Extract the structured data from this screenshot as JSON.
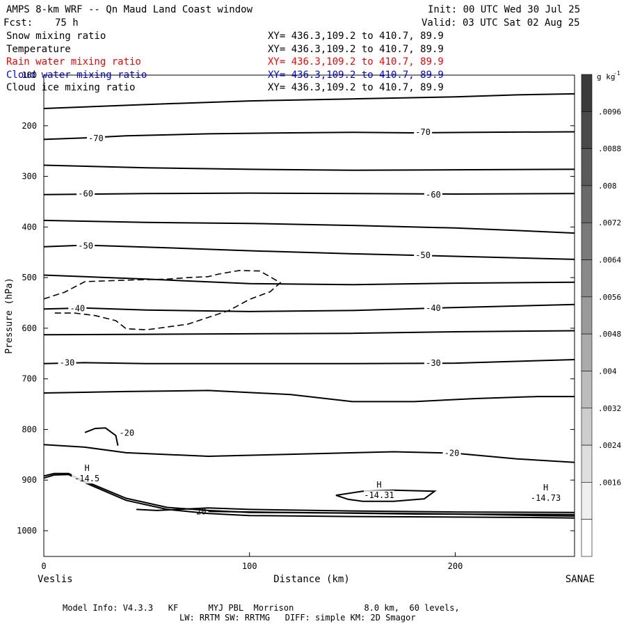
{
  "header": {
    "title": "AMPS 8-km WRF -- Qn Maud Land Coast window",
    "init": "Init: 00 UTC Wed 30 Jul 25",
    "fcst_label": "Fcst:",
    "fcst_value": "75 h",
    "valid": "Valid: 03 UTC Sat 02 Aug 25"
  },
  "fields": [
    {
      "name": "Snow mixing ratio",
      "xy": "XY= 436.3,109.2 to 410.7, 89.9",
      "color": "#000000"
    },
    {
      "name": "Temperature",
      "xy": "XY= 436.3,109.2 to 410.7, 89.9",
      "color": "#000000"
    },
    {
      "name": "Rain water mixing ratio",
      "xy": "XY= 436.3,109.2 to 410.7, 89.9",
      "color": "#ff0000"
    },
    {
      "name": "Cloud water mixing ratio",
      "xy": "XY= 436.3,109.2 to 410.7, 89.9",
      "color": "#0000ff"
    },
    {
      "name": "Cloud ice mixing ratio",
      "xy": "XY= 436.3,109.2 to 410.7, 89.9",
      "color": "#000000"
    }
  ],
  "footer": {
    "line1": "Model Info: V4.3.3   KF      MYJ PBL  Morrison              8.0 km,  60 levels,",
    "line2": "LW: RRTM SW: RRTMG   DIFF: simple KM: 2D Smagor"
  },
  "chart_data": {
    "type": "contour",
    "xlabel": "Distance (km)",
    "ylabel": "Pressure (hPa)",
    "x_start_label": "Veslis",
    "x_end_label": "SANAE",
    "xlim": [
      0,
      258
    ],
    "ylim": [
      1050,
      100
    ],
    "x_ticks": [
      0,
      100,
      200
    ],
    "y_ticks": [
      100,
      200,
      300,
      400,
      500,
      600,
      700,
      800,
      900,
      1000
    ],
    "colorbar": {
      "unit": "g kg",
      "unit_exp": "-1",
      "levels": [
        ".0096",
        ".0088",
        ".008",
        ".0072",
        ".0064",
        ".0056",
        ".0048",
        ".004",
        ".0032",
        ".0024",
        ".0016"
      ],
      "colors": [
        "#3a3a3a",
        "#4a4a4a",
        "#5a5a5a",
        "#6a6a6a",
        "#7a7a7a",
        "#8a8a8a",
        "#9a9a9a",
        "#ababab",
        "#bcbcbc",
        "#cdcdcd",
        "#dedede",
        "#efefef",
        "#ffffff"
      ]
    },
    "isotherms": [
      {
        "points": [
          [
            0,
            166
          ],
          [
            50,
            158
          ],
          [
            100,
            151
          ],
          [
            150,
            147
          ],
          [
            200,
            143
          ],
          [
            230,
            139
          ],
          [
            258,
            137
          ]
        ]
      },
      {
        "points": [
          [
            0,
            227
          ],
          [
            20,
            224
          ],
          [
            40,
            220
          ],
          [
            80,
            216
          ],
          [
            120,
            214
          ],
          [
            150,
            213
          ],
          [
            180,
            214
          ],
          [
            210,
            213
          ],
          [
            258,
            212
          ]
        ],
        "label": "-70",
        "label_positions": [
          [
            25,
            225
          ],
          [
            184,
            213
          ]
        ]
      },
      {
        "points": [
          [
            0,
            278
          ],
          [
            50,
            283
          ],
          [
            100,
            286
          ],
          [
            150,
            288
          ],
          [
            200,
            287
          ],
          [
            258,
            286
          ]
        ]
      },
      {
        "points": [
          [
            0,
            336
          ],
          [
            50,
            334
          ],
          [
            100,
            333
          ],
          [
            150,
            334
          ],
          [
            200,
            335
          ],
          [
            258,
            334
          ]
        ],
        "label": "-60",
        "label_positions": [
          [
            20,
            334
          ],
          [
            189,
            336
          ]
        ]
      },
      {
        "points": [
          [
            0,
            387
          ],
          [
            50,
            391
          ],
          [
            100,
            393
          ],
          [
            150,
            397
          ],
          [
            200,
            402
          ],
          [
            230,
            407
          ],
          [
            258,
            412
          ]
        ]
      },
      {
        "points": [
          [
            0,
            439
          ],
          [
            20,
            436
          ],
          [
            60,
            441
          ],
          [
            100,
            447
          ],
          [
            150,
            453
          ],
          [
            200,
            458
          ],
          [
            258,
            464
          ]
        ],
        "label": "-50",
        "label_positions": [
          [
            20,
            437
          ],
          [
            184,
            456
          ]
        ]
      },
      {
        "points": [
          [
            0,
            495
          ],
          [
            50,
            503
          ],
          [
            100,
            512
          ],
          [
            150,
            514
          ],
          [
            200,
            511
          ],
          [
            258,
            509
          ]
        ]
      },
      {
        "points": [
          [
            0,
            562
          ],
          [
            20,
            560
          ],
          [
            50,
            564
          ],
          [
            100,
            567
          ],
          [
            150,
            565
          ],
          [
            200,
            559
          ],
          [
            258,
            553
          ]
        ],
        "label": "-40",
        "label_positions": [
          [
            16,
            561
          ],
          [
            189,
            560
          ]
        ]
      },
      {
        "points": [
          [
            0,
            613
          ],
          [
            50,
            612
          ],
          [
            100,
            611
          ],
          [
            150,
            610
          ],
          [
            200,
            607
          ],
          [
            258,
            605
          ]
        ]
      },
      {
        "points": [
          [
            0,
            670
          ],
          [
            20,
            668
          ],
          [
            50,
            670
          ],
          [
            100,
            670
          ],
          [
            150,
            670
          ],
          [
            200,
            669
          ],
          [
            258,
            662
          ]
        ],
        "label": "-30",
        "label_positions": [
          [
            11,
            668
          ],
          [
            189,
            669
          ]
        ]
      },
      {
        "points": [
          [
            0,
            728
          ],
          [
            40,
            725
          ],
          [
            80,
            723
          ],
          [
            120,
            731
          ],
          [
            150,
            745
          ],
          [
            180,
            745
          ],
          [
            210,
            739
          ],
          [
            240,
            735
          ],
          [
            258,
            735
          ]
        ]
      },
      {
        "points": [
          [
            0,
            830
          ],
          [
            20,
            835
          ],
          [
            40,
            846
          ],
          [
            80,
            853
          ],
          [
            120,
            849
          ],
          [
            170,
            844
          ],
          [
            200,
            847
          ],
          [
            230,
            858
          ],
          [
            258,
            865
          ]
        ],
        "label": "-20",
        "label_positions": [
          [
            40,
            807
          ],
          [
            198,
            847
          ],
          [
            75,
            962
          ]
        ]
      },
      {
        "points": [
          [
            20,
            806
          ],
          [
            25,
            798
          ],
          [
            30,
            797
          ],
          [
            35,
            812
          ],
          [
            36,
            832
          ]
        ]
      }
    ],
    "cloud_ice_contour": {
      "style": "dashed",
      "points": [
        [
          0,
          542
        ],
        [
          10,
          529
        ],
        [
          20,
          508
        ],
        [
          40,
          505
        ],
        [
          60,
          503
        ],
        [
          70,
          500
        ],
        [
          80,
          498
        ],
        [
          85,
          493
        ],
        [
          95,
          486
        ],
        [
          105,
          487
        ],
        [
          115,
          510
        ],
        [
          110,
          528
        ],
        [
          100,
          543
        ],
        [
          90,
          565
        ],
        [
          70,
          592
        ],
        [
          50,
          603
        ],
        [
          40,
          601
        ],
        [
          35,
          585
        ],
        [
          25,
          575
        ],
        [
          15,
          570
        ],
        [
          5,
          570
        ]
      ]
    },
    "highs": [
      {
        "label": "H",
        "value": "-14.5",
        "x": 21,
        "p": 882
      },
      {
        "label": "H",
        "value": "-14.31",
        "x": 163,
        "p": 915
      },
      {
        "label": "H",
        "value": "-14.73",
        "x": 244,
        "p": 920
      }
    ],
    "closed_contour_h2": [
      [
        142,
        930
      ],
      [
        155,
        922
      ],
      [
        170,
        920
      ],
      [
        190,
        922
      ],
      [
        185,
        937
      ],
      [
        170,
        942
      ],
      [
        155,
        942
      ],
      [
        148,
        938
      ],
      [
        142,
        930
      ]
    ],
    "terrain": [
      [
        0,
        896
      ],
      [
        5,
        890
      ],
      [
        12,
        889
      ],
      [
        20,
        905
      ],
      [
        40,
        940
      ],
      [
        60,
        958
      ],
      [
        80,
        966
      ],
      [
        100,
        970
      ],
      [
        150,
        972
      ],
      [
        200,
        973
      ],
      [
        240,
        974
      ],
      [
        258,
        975
      ]
    ],
    "terrain_inner": [
      [
        0,
        892
      ],
      [
        5,
        887
      ],
      [
        12,
        887
      ],
      [
        20,
        902
      ],
      [
        40,
        936
      ],
      [
        60,
        954
      ],
      [
        80,
        960
      ],
      [
        100,
        964
      ],
      [
        150,
        965
      ],
      [
        200,
        967
      ],
      [
        240,
        970
      ],
      [
        258,
        971
      ]
    ],
    "near_surface": [
      [
        [
          45,
          958
        ],
        [
          55,
          960
        ],
        [
          80,
          955
        ],
        [
          100,
          958
        ],
        [
          150,
          961
        ],
        [
          200,
          963
        ],
        [
          258,
          964
        ]
      ],
      [
        [
          80,
          962
        ],
        [
          120,
          964
        ],
        [
          180,
          967
        ],
        [
          258,
          968
        ]
      ]
    ]
  }
}
